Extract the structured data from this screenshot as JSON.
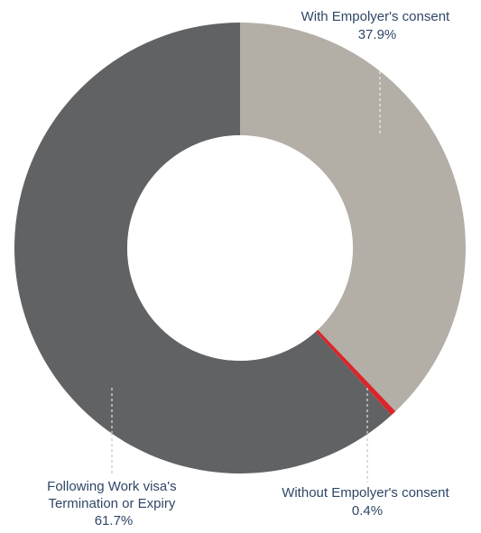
{
  "chart_data": {
    "type": "pie",
    "donut": true,
    "title": "",
    "slices": [
      {
        "label": "With Empolyer's consent",
        "value_label": "37.9%",
        "value": 37.9,
        "color": "#b3aea6"
      },
      {
        "label": "Without Empolyer's consent",
        "value_label": "0.4%",
        "value": 0.4,
        "color": "#d9262b"
      },
      {
        "label_lines": [
          "Following Work visa's",
          "Termination or Expiry"
        ],
        "value_label": "61.7%",
        "value": 61.7,
        "color": "#616264"
      }
    ],
    "legend": "none"
  }
}
